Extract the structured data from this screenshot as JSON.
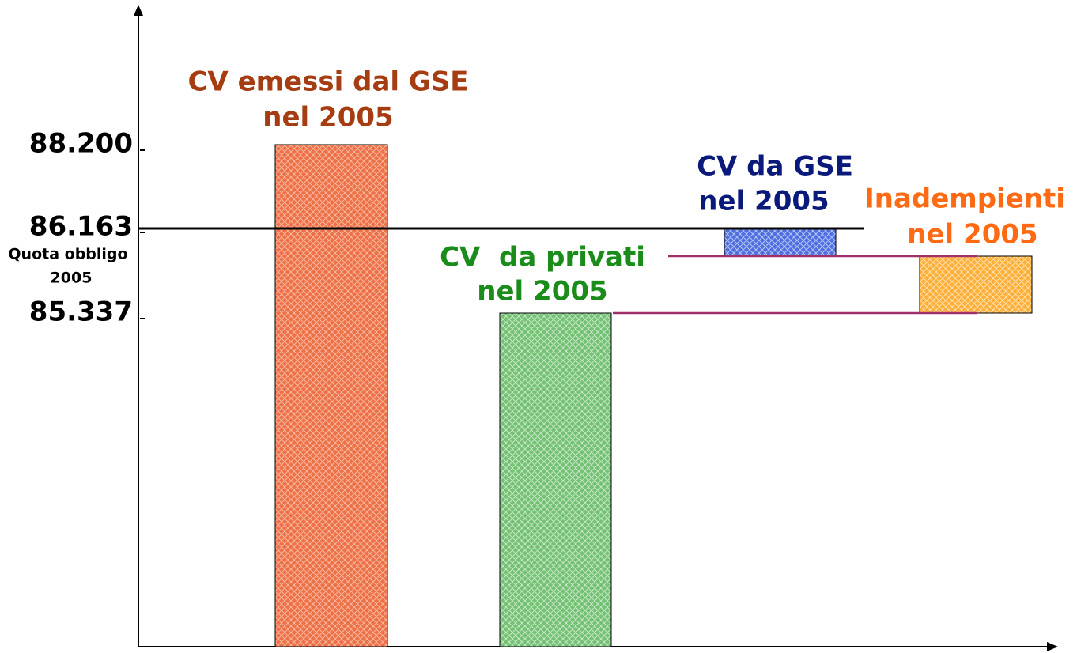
{
  "axis": {
    "ticks": [
      "88.200",
      "86.163",
      "85.337"
    ],
    "quota_label": [
      "Quota obbligo",
      "2005"
    ]
  },
  "labels": {
    "gse_emessi": [
      "CV emessi dal GSE",
      "nel 2005"
    ],
    "privati": [
      "CV  da privati",
      "nel 2005"
    ],
    "da_gse": [
      "CV da GSE",
      "nel 2005"
    ],
    "inadempienti": [
      "Inadempienti",
      "nel 2005"
    ]
  }
}
